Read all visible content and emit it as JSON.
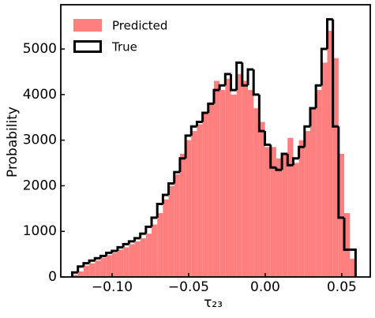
{
  "chart_data": {
    "type": "histogram",
    "xlabel": "τ₂₃",
    "ylabel": "Probability",
    "bins": [
      -0.126,
      -0.1223,
      -0.1186,
      -0.1149,
      -0.1112,
      -0.1075,
      -0.1038,
      -0.1001,
      -0.0964,
      -0.0927,
      -0.089,
      -0.0853,
      -0.0816,
      -0.0779,
      -0.0742,
      -0.0705,
      -0.0668,
      -0.0631,
      -0.0594,
      -0.0557,
      -0.052,
      -0.0483,
      -0.0446,
      -0.0409,
      -0.0372,
      -0.0335,
      -0.0298,
      -0.0261,
      -0.0224,
      -0.0187,
      -0.015,
      -0.0113,
      -0.0076,
      -0.0039,
      -0.0002,
      0.0035,
      0.0072,
      0.0109,
      0.0146,
      0.0183,
      0.022,
      0.0257,
      0.0294,
      0.0331,
      0.0368,
      0.0405,
      0.0442,
      0.0479,
      0.0516,
      0.0553,
      0.059
    ],
    "series": [
      {
        "name": "Predicted",
        "color": "#ff7f7f",
        "style": "filled",
        "values": [
          50,
          120,
          250,
          300,
          360,
          420,
          480,
          530,
          600,
          650,
          720,
          780,
          850,
          950,
          1150,
          1400,
          1700,
          2000,
          2250,
          2700,
          3000,
          3200,
          3350,
          3600,
          3800,
          4300,
          4100,
          4350,
          4000,
          4450,
          4300,
          4100,
          3700,
          3400,
          2850,
          2850,
          2600,
          2700,
          3050,
          2500,
          3000,
          3200,
          3700,
          4100,
          4700,
          5400,
          4800,
          2700,
          1400,
          400
        ]
      },
      {
        "name": "True",
        "color": "#000000",
        "style": "step",
        "values": [
          100,
          230,
          300,
          360,
          410,
          460,
          530,
          570,
          650,
          720,
          780,
          850,
          950,
          1100,
          1300,
          1600,
          1800,
          2050,
          2300,
          2600,
          3100,
          3300,
          3400,
          3600,
          3800,
          4100,
          4200,
          4450,
          4100,
          4700,
          4200,
          4550,
          4000,
          3200,
          2900,
          2400,
          2350,
          2700,
          2450,
          2600,
          2850,
          3300,
          3700,
          4200,
          5000,
          5650,
          3300,
          1300,
          600,
          600
        ]
      }
    ],
    "xlim": [
      -0.1335,
      0.0686
    ],
    "ylim": [
      0,
      5970
    ],
    "xticks": [
      {
        "value": -0.1,
        "label": "−0.10"
      },
      {
        "value": -0.05,
        "label": "−0.05"
      },
      {
        "value": 0,
        "label": "0.00"
      },
      {
        "value": 0.05,
        "label": "0.05"
      }
    ],
    "yticks": [
      0,
      1000,
      2000,
      3000,
      4000,
      5000
    ],
    "grid": false,
    "legend": "upper left"
  }
}
